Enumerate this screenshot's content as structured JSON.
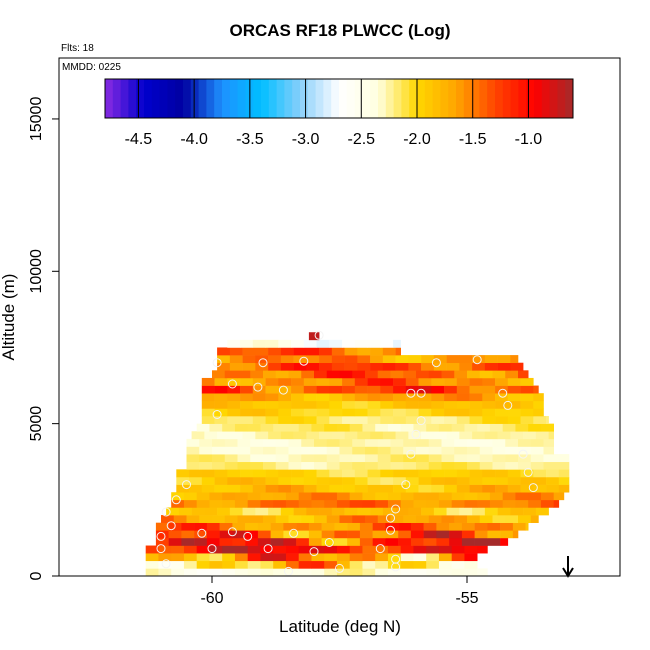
{
  "chart_data": {
    "type": "heatmap",
    "title": "ORCAS RF18 PLWCC (Log)",
    "flights_label": "Flts: 18",
    "date_label": "MMDD: 0225",
    "xlabel": "Latitude (deg N)",
    "ylabel": "Altitude (m)",
    "xlim": [
      -63.0,
      -52.0
    ],
    "ylim": [
      0,
      17000
    ],
    "x_ticks": [
      -60,
      -55
    ],
    "x_tick_labels": [
      "-60",
      "-55"
    ],
    "y_ticks": [
      0,
      5000,
      10000,
      15000
    ],
    "y_tick_labels": [
      "0",
      "5000",
      "10000",
      "15000"
    ],
    "colorbar": {
      "range": [
        -4.8,
        -0.6
      ],
      "ticks": [
        -4.5,
        -4.0,
        -3.5,
        -3.0,
        -2.5,
        -2.0,
        -1.5,
        -1.0
      ],
      "tick_labels": [
        "-4.5",
        "-4.0",
        "-3.5",
        "-3.0",
        "-2.5",
        "-2.0",
        "-1.5",
        "-1.0"
      ],
      "colors": [
        "#8a2be2",
        "#0000cd",
        "#0000a0",
        "#1e90ff",
        "#00bfff",
        "#87cefa",
        "#ffffff",
        "#ffffe0",
        "#ffd700",
        "#ffa500",
        "#ff4500",
        "#ff0000",
        "#a52a2a"
      ]
    },
    "grid": {
      "lat_min": -61.3,
      "lat_step": 0.25,
      "alt_min": 0,
      "alt_step": 250,
      "n_rows": 33
    },
    "rows": [
      {
        "alt": 125,
        "start": -61.3,
        "end": -54.6,
        "base": -2.4,
        "amp": 0.25,
        "seed": 1
      },
      {
        "alt": 375,
        "start": -61.3,
        "end": -54.8,
        "base": -1.9,
        "amp": 0.8,
        "seed": 2
      },
      {
        "alt": 625,
        "start": -61.3,
        "end": -54.8,
        "base": -1.6,
        "amp": 0.9,
        "seed": 3
      },
      {
        "alt": 875,
        "start": -61.3,
        "end": -54.6,
        "base": -1.0,
        "amp": 0.5,
        "seed": 4
      },
      {
        "alt": 1125,
        "start": -61.1,
        "end": -54.2,
        "base": -1.2,
        "amp": 0.9,
        "seed": 5
      },
      {
        "alt": 1375,
        "start": -61.1,
        "end": -54.0,
        "base": -1.4,
        "amp": 0.8,
        "seed": 6
      },
      {
        "alt": 1625,
        "start": -61.1,
        "end": -53.8,
        "base": -1.5,
        "amp": 0.5,
        "seed": 7
      },
      {
        "alt": 1875,
        "start": -61.0,
        "end": -53.6,
        "base": -1.7,
        "amp": 0.4,
        "seed": 8
      },
      {
        "alt": 2125,
        "start": -60.9,
        "end": -53.4,
        "base": -1.9,
        "amp": 0.35,
        "seed": 9
      },
      {
        "alt": 2375,
        "start": -60.8,
        "end": -53.2,
        "base": -1.5,
        "amp": 0.3,
        "seed": 10
      },
      {
        "alt": 2625,
        "start": -60.8,
        "end": -53.1,
        "base": -1.7,
        "amp": 0.3,
        "seed": 11
      },
      {
        "alt": 2875,
        "start": -60.7,
        "end": -53.0,
        "base": -1.85,
        "amp": 0.3,
        "seed": 12
      },
      {
        "alt": 3125,
        "start": -60.7,
        "end": -53.0,
        "base": -1.95,
        "amp": 0.25,
        "seed": 13
      },
      {
        "alt": 3375,
        "start": -60.7,
        "end": -53.0,
        "base": -2.0,
        "amp": 0.2,
        "seed": 14
      },
      {
        "alt": 3625,
        "start": -60.5,
        "end": -53.0,
        "base": -2.2,
        "amp": 0.15,
        "seed": 15
      },
      {
        "alt": 3875,
        "start": -60.5,
        "end": -53.0,
        "base": -2.25,
        "amp": 0.15,
        "seed": 16
      },
      {
        "alt": 4125,
        "start": -60.5,
        "end": -53.3,
        "base": -2.3,
        "amp": 0.15,
        "seed": 17
      },
      {
        "alt": 4375,
        "start": -60.5,
        "end": -53.3,
        "base": -2.3,
        "amp": 0.15,
        "seed": 18
      },
      {
        "alt": 4625,
        "start": -60.4,
        "end": -53.3,
        "base": -2.25,
        "amp": 0.15,
        "seed": 19
      },
      {
        "alt": 4875,
        "start": -60.3,
        "end": -53.3,
        "base": -2.2,
        "amp": 0.2,
        "seed": 20
      },
      {
        "alt": 5125,
        "start": -60.2,
        "end": -53.4,
        "base": -2.15,
        "amp": 0.2,
        "seed": 21
      },
      {
        "alt": 5375,
        "start": -60.2,
        "end": -53.5,
        "base": -2.0,
        "amp": 0.2,
        "seed": 22
      },
      {
        "alt": 5625,
        "start": -60.2,
        "end": -53.5,
        "base": -1.9,
        "amp": 0.2,
        "seed": 23
      },
      {
        "alt": 5875,
        "start": -60.2,
        "end": -53.5,
        "base": -1.7,
        "amp": 0.3,
        "seed": 24
      },
      {
        "alt": 6125,
        "start": -60.2,
        "end": -53.6,
        "base": -1.3,
        "amp": 0.5,
        "seed": 25
      },
      {
        "alt": 6375,
        "start": -60.2,
        "end": -53.7,
        "base": -1.5,
        "amp": 0.5,
        "seed": 26
      },
      {
        "alt": 6625,
        "start": -60.0,
        "end": -53.8,
        "base": -1.4,
        "amp": 0.5,
        "seed": 27
      },
      {
        "alt": 6875,
        "start": -59.9,
        "end": -53.9,
        "base": -1.3,
        "amp": 0.4,
        "seed": 28
      },
      {
        "alt": 7125,
        "start": -59.9,
        "end": -54.0,
        "base": -1.6,
        "amp": 0.4,
        "seed": 29
      },
      {
        "alt": 7375,
        "start": -59.9,
        "end": -56.3,
        "base": -1.4,
        "amp": 0.4,
        "seed": 30
      },
      {
        "alt": 7625,
        "start": -59.7,
        "end": -56.3,
        "base": -2.6,
        "amp": 0.3,
        "seed": 31
      },
      {
        "alt": 7875,
        "start": -58.1,
        "end": -57.9,
        "base": -0.7,
        "amp": 0.0,
        "seed": 32
      }
    ],
    "points": [
      [
        -60.9,
        400
      ],
      [
        -61.0,
        900
      ],
      [
        -61.0,
        1300
      ],
      [
        -60.8,
        1650
      ],
      [
        -60.9,
        2100
      ],
      [
        -60.7,
        2500
      ],
      [
        -60.5,
        3000
      ],
      [
        -60.2,
        1400
      ],
      [
        -60.0,
        900
      ],
      [
        -59.6,
        1450
      ],
      [
        -59.3,
        1300
      ],
      [
        -58.9,
        900
      ],
      [
        -58.4,
        1400
      ],
      [
        -58.0,
        800
      ],
      [
        -57.7,
        1100
      ],
      [
        -57.5,
        250
      ],
      [
        -58.5,
        150
      ],
      [
        -56.7,
        900
      ],
      [
        -56.5,
        1500
      ],
      [
        -56.5,
        1900
      ],
      [
        -56.4,
        2200
      ],
      [
        -56.4,
        300
      ],
      [
        -56.4,
        550
      ],
      [
        -56.2,
        3000
      ],
      [
        -56.1,
        4000
      ],
      [
        -56.0,
        4650
      ],
      [
        -55.9,
        5100
      ],
      [
        -55.9,
        6000
      ],
      [
        -55.6,
        7000
      ],
      [
        -54.8,
        7100
      ],
      [
        -54.3,
        6000
      ],
      [
        -54.2,
        5600
      ],
      [
        -53.9,
        4000
      ],
      [
        -53.8,
        3400
      ],
      [
        -53.7,
        2900
      ],
      [
        -59.9,
        7000
      ],
      [
        -59.6,
        6300
      ],
      [
        -59.9,
        5300
      ],
      [
        -59.1,
        6200
      ],
      [
        -58.6,
        6100
      ],
      [
        -59.0,
        7000
      ],
      [
        -58.2,
        7050
      ],
      [
        -57.9,
        7900
      ],
      [
        -56.1,
        6000
      ]
    ]
  }
}
